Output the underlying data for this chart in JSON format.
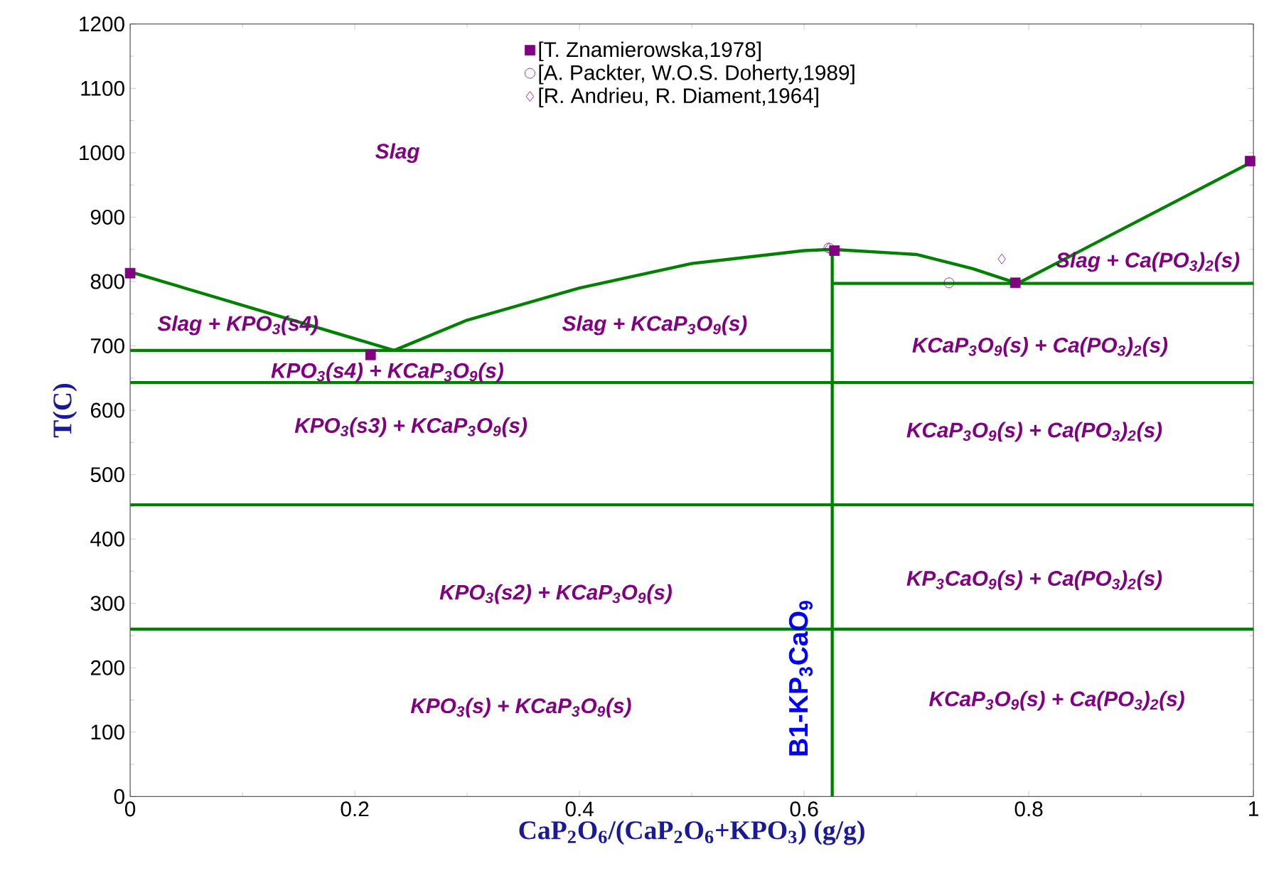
{
  "chart_data": {
    "type": "line",
    "xlabel": "CaP$_{2}$O$_{6}$/(CaP$_{2}$O$_{6}$+KPO$_{3}$) (g/g)",
    "ylabel": "T(C)",
    "xlim": [
      0,
      1
    ],
    "ylim": [
      0,
      1200
    ],
    "xticks": [
      0,
      0.2,
      0.4,
      0.6,
      0.8,
      1
    ],
    "yticks": [
      0,
      100,
      200,
      300,
      400,
      500,
      600,
      700,
      800,
      900,
      1000,
      1100,
      1200
    ],
    "grid": false,
    "legend": "top",
    "series": [
      {
        "color": "#008000",
        "x": [
          0,
          0.235
        ],
        "values": [
          815,
          693
        ]
      },
      {
        "color": "#008000",
        "x": [
          0.235,
          0.3,
          0.4,
          0.5,
          0.6,
          0.625,
          0.7,
          0.75,
          0.79
        ],
        "values": [
          693,
          740,
          790,
          828,
          848,
          850,
          842,
          820,
          797
        ]
      },
      {
        "color": "#008000",
        "x": [
          0.79,
          1
        ],
        "values": [
          797,
          987
        ]
      },
      {
        "color": "#008000",
        "x": [
          0,
          0.625
        ],
        "values": [
          693,
          693
        ]
      },
      {
        "color": "#008000",
        "x": [
          0.625,
          1
        ],
        "values": [
          797,
          797
        ]
      },
      {
        "color": "#008000",
        "x": [
          0,
          1
        ],
        "values": [
          643,
          643
        ]
      },
      {
        "color": "#008000",
        "x": [
          0,
          1
        ],
        "values": [
          453,
          453
        ]
      },
      {
        "color": "#008000",
        "x": [
          0,
          1
        ],
        "values": [
          260,
          260
        ]
      },
      {
        "color": "#008000",
        "x": [
          0.625,
          0.625
        ],
        "values": [
          0,
          850
        ]
      },
      {
        "type": "scatter",
        "name": "[T. Znamierowska,1978]",
        "color": "#800080",
        "marker": "square",
        "x": [
          0,
          0.214,
          0.627,
          0.788,
          0.997
        ],
        "values": [
          813,
          686,
          848,
          798,
          987
        ]
      },
      {
        "type": "scatter",
        "name": "[A. Packter, W.O.S. Doherty,1989]",
        "color": "#800080",
        "marker": "circle",
        "x": [
          0.622,
          0.729
        ],
        "values": [
          852,
          798
        ]
      },
      {
        "type": "scatter",
        "name": "[R. Andrieu, R. Diament,1964]",
        "color": "#800080",
        "marker": "diamond",
        "x": [
          0.622,
          0.776
        ],
        "values": [
          852,
          835
        ]
      }
    ],
    "annotations": [
      "Slag",
      "Slag + KPO$_{3}$(s4)",
      "Slag + KCaP$_{3}$O$_{9}$(s)",
      "KPO$_{3}$(s4) + KCaP$_{3}$O$_{9}$(s)",
      "KPO$_{3}$(s3) + KCaP$_{3}$O$_{9}$(s)",
      "KPO$_{3}$(s2) + KCaP$_{3}$O$_{9}$(s)",
      "KPO$_{3}$(s) + KCaP$_{3}$O$_{9}$(s)",
      "Slag + Ca(PO$_{3}$)$_{2}$(s)",
      "KCaP$_{3}$O$_{9}$(s) + Ca(PO$_{3}$)$_{2}$(s)",
      "KCaP$_{3}$O$_{9}$(s) + Ca(PO$_{3}$)$_{2}$(s)",
      "KP$_{3}$CaO$_{9}$(s) + Ca(PO$_{3}$)$_{2}$(s)",
      "KCaP$_{3}$O$_{9}$(s) + Ca(PO$_{3}$)$_{2}$(s)",
      "B1-KP$_{3}$CaO$_{9}$"
    ]
  }
}
